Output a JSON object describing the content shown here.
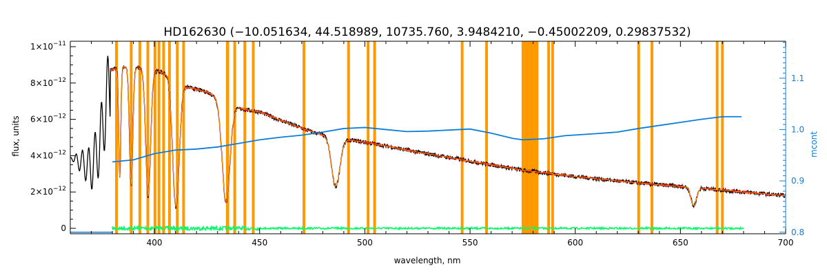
{
  "chart_data": {
    "type": "line",
    "title": "HD162630    (−10.051634, 44.518989, 10735.760, 3.9484210, −0.45002209, 0.29837532)",
    "xlabel": "wavelength, nm",
    "ylabel": "flux, units",
    "y2label": "mcont",
    "xlim": [
      360,
      700
    ],
    "ylim": [
      -3e-13,
      1.03e-11
    ],
    "y2lim": [
      0.797,
      1.172
    ],
    "x_ticks": [
      400,
      450,
      500,
      550,
      600,
      650,
      700
    ],
    "x_tick_labels": [
      "400",
      "450",
      "500",
      "550",
      "600",
      "650",
      "700"
    ],
    "y_ticks": [
      0,
      2e-12,
      4e-12,
      6e-12,
      8e-12,
      1e-11
    ],
    "y_tick_labels": [
      {
        "base": "0",
        "exp": ""
      },
      {
        "base": "2×10",
        "exp": "−12"
      },
      {
        "base": "4×10",
        "exp": "−12"
      },
      {
        "base": "6×10",
        "exp": "−12"
      },
      {
        "base": "8×10",
        "exp": "−12"
      },
      {
        "base": "1×10",
        "exp": "−11"
      }
    ],
    "y2_ticks": [
      0.8,
      0.9,
      1.0,
      1.1
    ],
    "y2_tick_labels": [
      "0.8",
      "0.9",
      "1.0",
      "1.1"
    ],
    "masked_ranges": [
      [
        381.3,
        382.6
      ],
      [
        388.3,
        389.6
      ],
      [
        392.4,
        393.7
      ],
      [
        396.2,
        397.5
      ],
      [
        399.6,
        400.9
      ],
      [
        401.5,
        402.8
      ],
      [
        403.7,
        405.0
      ],
      [
        406.5,
        407.8
      ],
      [
        410.2,
        411.5
      ],
      [
        413.2,
        414.5
      ],
      [
        434.0,
        435.5
      ],
      [
        437.5,
        438.8
      ],
      [
        442.3,
        443.6
      ],
      [
        446.3,
        447.6
      ],
      [
        470.4,
        471.7
      ],
      [
        491.6,
        492.9
      ],
      [
        500.9,
        502.2
      ],
      [
        504.0,
        505.3
      ],
      [
        545.6,
        546.9
      ],
      [
        557.2,
        558.5
      ],
      [
        574.5,
        582.5
      ],
      [
        586.7,
        588.0
      ],
      [
        588.6,
        589.9
      ],
      [
        629.5,
        630.8
      ],
      [
        635.8,
        637.1
      ],
      [
        666.8,
        668.1
      ],
      [
        669.3,
        670.6
      ]
    ],
    "lines": [
      {
        "center": 383.5,
        "depth": 6.0,
        "width": 0.7
      },
      {
        "center": 388.9,
        "depth": 6.5,
        "width": 1.1
      },
      {
        "center": 397.0,
        "depth": 7.0,
        "width": 1.6
      },
      {
        "center": 410.2,
        "depth": 7.0,
        "width": 2.2
      },
      {
        "center": 434.0,
        "depth": 5.5,
        "width": 2.6
      },
      {
        "center": 486.1,
        "depth": 2.7,
        "width": 2.8
      },
      {
        "center": 656.3,
        "depth": 1.0,
        "width": 1.8
      }
    ],
    "balmer_jump": [
      {
        "x": 360,
        "y": 3.9e-12
      },
      {
        "x": 366,
        "y": 3.6e-12
      },
      {
        "x": 370,
        "y": 3.3e-12
      },
      {
        "x": 374,
        "y": 4.6e-12
      },
      {
        "x": 378,
        "y": 7.5e-12
      },
      {
        "x": 379,
        "y": 8e-12
      }
    ],
    "continuum_knots": [
      {
        "x": 379,
        "y": 8.7e-12
      },
      {
        "x": 385,
        "y": 8.9e-12
      },
      {
        "x": 395,
        "y": 8.8e-12
      },
      {
        "x": 405,
        "y": 8.55e-12
      },
      {
        "x": 415,
        "y": 7.8e-12
      },
      {
        "x": 425,
        "y": 7.5e-12
      },
      {
        "x": 440,
        "y": 6.6e-12
      },
      {
        "x": 450,
        "y": 6.4e-12
      },
      {
        "x": 460,
        "y": 5.95e-12
      },
      {
        "x": 475,
        "y": 5.3e-12
      },
      {
        "x": 490,
        "y": 4.9e-12
      },
      {
        "x": 500,
        "y": 4.75e-12
      },
      {
        "x": 525,
        "y": 4.2e-12
      },
      {
        "x": 550,
        "y": 3.7e-12
      },
      {
        "x": 575,
        "y": 3.2e-12
      },
      {
        "x": 600,
        "y": 2.85e-12
      },
      {
        "x": 625,
        "y": 2.55e-12
      },
      {
        "x": 650,
        "y": 2.3e-12
      },
      {
        "x": 675,
        "y": 2.05e-12
      },
      {
        "x": 700,
        "y": 1.8e-12
      }
    ],
    "mcont": [
      {
        "x": 380,
        "y": 0.937
      },
      {
        "x": 390,
        "y": 0.941
      },
      {
        "x": 400,
        "y": 0.953
      },
      {
        "x": 410,
        "y": 0.96
      },
      {
        "x": 420,
        "y": 0.962
      },
      {
        "x": 430,
        "y": 0.966
      },
      {
        "x": 440,
        "y": 0.973
      },
      {
        "x": 450,
        "y": 0.98
      },
      {
        "x": 460,
        "y": 0.985
      },
      {
        "x": 470,
        "y": 0.989
      },
      {
        "x": 480,
        "y": 0.995
      },
      {
        "x": 490,
        "y": 1.002
      },
      {
        "x": 500,
        "y": 1.004
      },
      {
        "x": 510,
        "y": 1.0
      },
      {
        "x": 520,
        "y": 0.996
      },
      {
        "x": 530,
        "y": 0.997
      },
      {
        "x": 540,
        "y": 0.999
      },
      {
        "x": 550,
        "y": 1.001
      },
      {
        "x": 560,
        "y": 0.993
      },
      {
        "x": 570,
        "y": 0.983
      },
      {
        "x": 575,
        "y": 0.98
      },
      {
        "x": 585,
        "y": 0.982
      },
      {
        "x": 595,
        "y": 0.988
      },
      {
        "x": 610,
        "y": 0.992
      },
      {
        "x": 620,
        "y": 0.995
      },
      {
        "x": 630,
        "y": 1.002
      },
      {
        "x": 640,
        "y": 1.008
      },
      {
        "x": 650,
        "y": 1.014
      },
      {
        "x": 660,
        "y": 1.02
      },
      {
        "x": 670,
        "y": 1.025
      },
      {
        "x": 679,
        "y": 1.025
      }
    ],
    "residual_level": 0.0,
    "series": [
      {
        "key": "observed",
        "color": "#000000"
      },
      {
        "key": "model",
        "color": "#ff0000"
      },
      {
        "key": "fit",
        "color": "#ffff00"
      },
      {
        "key": "residual",
        "color": "#00ff66"
      },
      {
        "key": "mcont",
        "color": "#0a7ddb"
      }
    ],
    "mask_color": "#ff9900",
    "axis_color": "#000000",
    "y2_axis_color": "#0a7ddb"
  }
}
